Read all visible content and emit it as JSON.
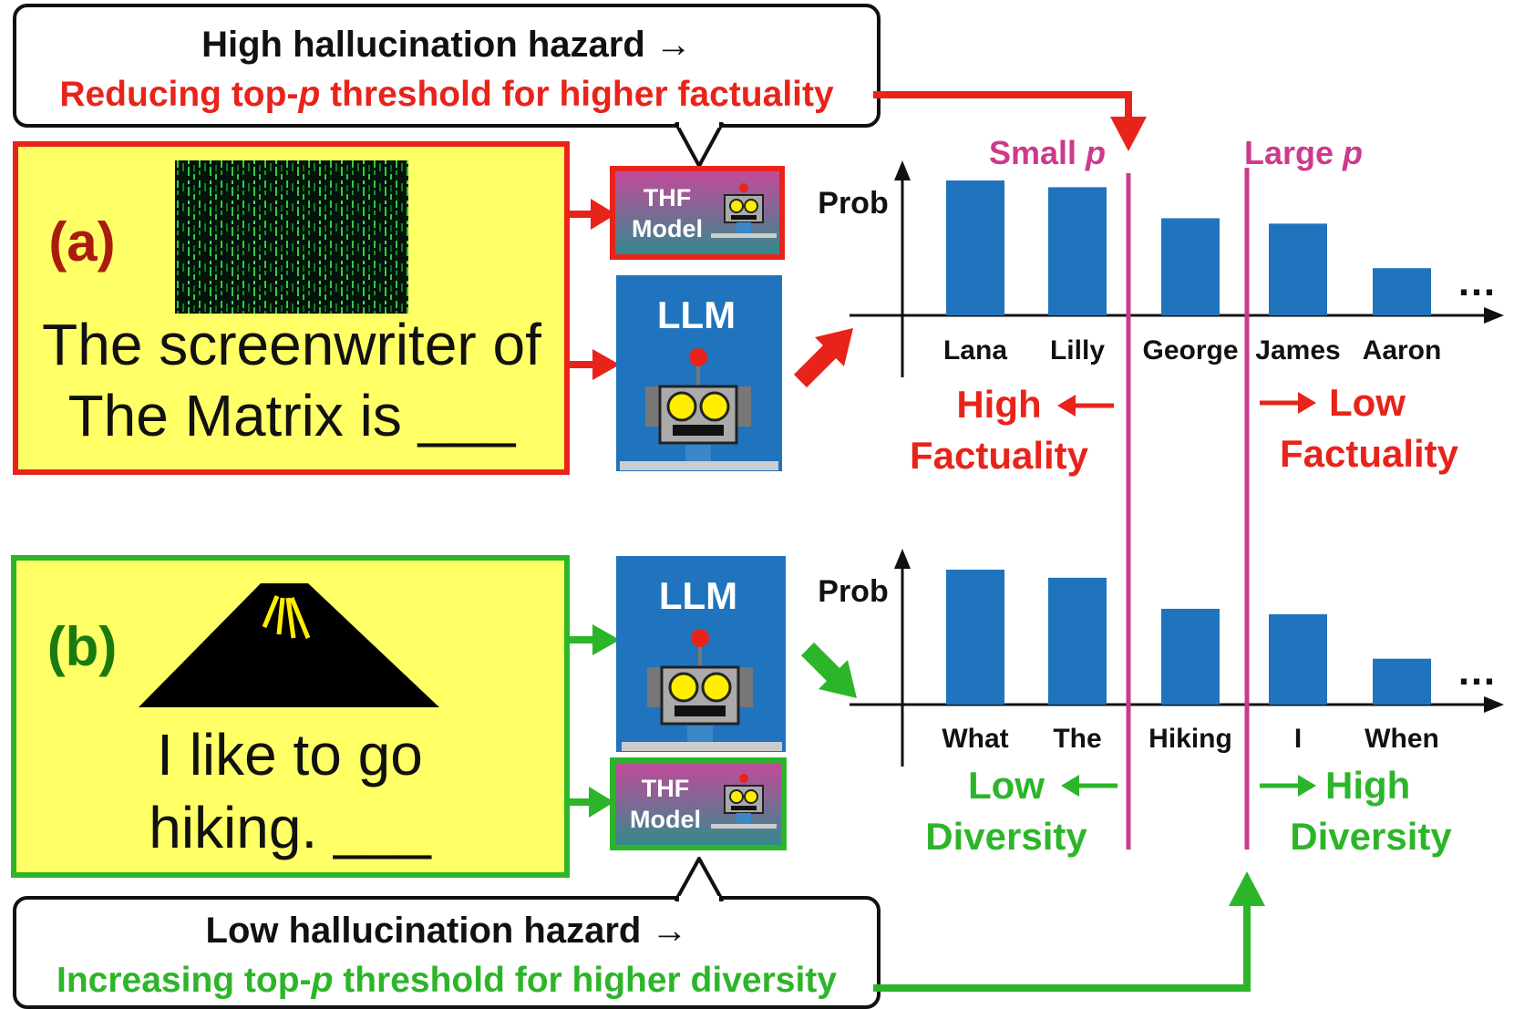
{
  "colors": {
    "red": "#e8231a",
    "green": "#2db52a",
    "magenta": "#cc3a8c",
    "blue": "#1f74bd",
    "yellow": "#ffff66",
    "label_a": "#a81c10",
    "label_b": "#1a7a10"
  },
  "panel_a": {
    "label": "(a)",
    "prompt_line1": "The screenwriter of",
    "prompt_line2": "The Matrix is ___",
    "image_icon": "matrix-code-image",
    "callout_line1": "High hallucination hazard →",
    "callout_line2_pre": "Reducing top-",
    "callout_line2_p": "p",
    "callout_line2_post": " threshold for higher factuality",
    "thf_line1": "THF",
    "thf_line2": "Model",
    "llm": "LLM",
    "left_label_1": "High",
    "left_label_2": "Factuality",
    "right_label_1": "Low",
    "right_label_2": "Factuality"
  },
  "panel_b": {
    "label": "(b)",
    "prompt_line1": "I like to go",
    "prompt_line2": "hiking. ___",
    "image_icon": "mountain-icon",
    "callout_line1": "Low hallucination hazard →",
    "callout_line2_pre": "Increasing top-",
    "callout_line2_p": "p",
    "callout_line2_post": " threshold for higher diversity",
    "thf_line1": "THF",
    "thf_line2": "Model",
    "llm": "LLM",
    "left_label_1": "Low",
    "left_label_2": "Diversity",
    "right_label_1": "High",
    "right_label_2": "Diversity"
  },
  "thresholds": {
    "small_pre": "Small ",
    "small_p": "p",
    "large_pre": "Large ",
    "large_p": "p"
  },
  "chart_data": [
    {
      "type": "bar",
      "ylabel": "Prob",
      "categories": [
        "Lana",
        "Lilly",
        "George",
        "James",
        "Aaron"
      ],
      "values": [
        1.0,
        0.95,
        0.72,
        0.68,
        0.35
      ],
      "ellipsis": "…"
    },
    {
      "type": "bar",
      "ylabel": "Prob",
      "categories": [
        "What",
        "The",
        "Hiking",
        "I",
        "When"
      ],
      "values": [
        1.0,
        0.94,
        0.71,
        0.67,
        0.34
      ],
      "ellipsis": "…"
    }
  ]
}
